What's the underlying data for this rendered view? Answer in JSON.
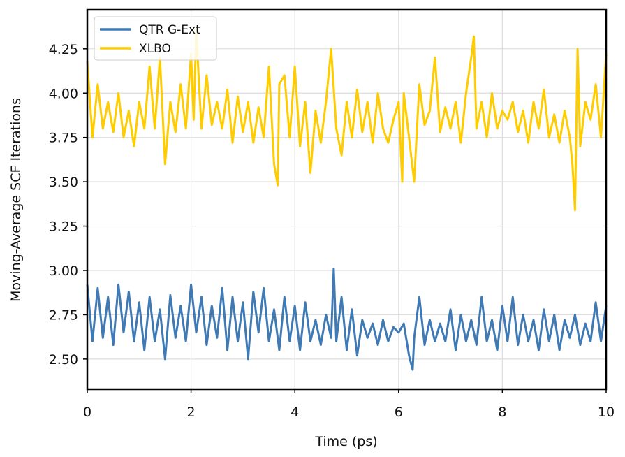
{
  "chart_data": {
    "type": "line",
    "title": "",
    "xlabel": "Time (ps)",
    "ylabel": "Moving-Average SCF Iterations",
    "xlim": [
      0,
      10
    ],
    "ylim": [
      2.33,
      4.47
    ],
    "xticks": [
      0,
      2,
      4,
      6,
      8,
      10
    ],
    "xtick_labels": [
      "0",
      "2",
      "4",
      "6",
      "8",
      "10"
    ],
    "yticks": [
      2.5,
      2.75,
      3.0,
      3.25,
      3.5,
      3.75,
      4.0,
      4.25
    ],
    "ytick_labels": [
      "2.50",
      "2.75",
      "3.00",
      "3.25",
      "3.50",
      "3.75",
      "4.00",
      "4.25"
    ],
    "grid": true,
    "legend_position": "top-left",
    "series": [
      {
        "name": "QTR G-Ext",
        "color": "#3f7ab5",
        "x": [
          0.0,
          0.1,
          0.2,
          0.3,
          0.4,
          0.5,
          0.6,
          0.7,
          0.8,
          0.9,
          1.0,
          1.1,
          1.2,
          1.3,
          1.4,
          1.5,
          1.6,
          1.7,
          1.8,
          1.9,
          2.0,
          2.1,
          2.2,
          2.3,
          2.4,
          2.5,
          2.6,
          2.7,
          2.8,
          2.9,
          3.0,
          3.1,
          3.2,
          3.3,
          3.4,
          3.5,
          3.6,
          3.7,
          3.8,
          3.9,
          4.0,
          4.1,
          4.2,
          4.3,
          4.4,
          4.5,
          4.6,
          4.7,
          4.75,
          4.8,
          4.9,
          5.0,
          5.1,
          5.2,
          5.3,
          5.4,
          5.5,
          5.6,
          5.7,
          5.8,
          5.9,
          6.0,
          6.1,
          6.2,
          6.27,
          6.3,
          6.4,
          6.5,
          6.6,
          6.7,
          6.8,
          6.9,
          7.0,
          7.1,
          7.2,
          7.3,
          7.4,
          7.5,
          7.6,
          7.7,
          7.8,
          7.9,
          8.0,
          8.1,
          8.2,
          8.3,
          8.4,
          8.5,
          8.6,
          8.7,
          8.8,
          8.9,
          9.0,
          9.1,
          9.2,
          9.3,
          9.4,
          9.5,
          9.6,
          9.7,
          9.8,
          9.9,
          10.0
        ],
        "y": [
          2.92,
          2.6,
          2.9,
          2.62,
          2.85,
          2.58,
          2.92,
          2.65,
          2.88,
          2.6,
          2.82,
          2.55,
          2.85,
          2.6,
          2.78,
          2.5,
          2.86,
          2.62,
          2.8,
          2.6,
          2.92,
          2.65,
          2.85,
          2.58,
          2.8,
          2.62,
          2.9,
          2.55,
          2.85,
          2.6,
          2.82,
          2.5,
          2.88,
          2.65,
          2.9,
          2.6,
          2.78,
          2.55,
          2.85,
          2.6,
          2.8,
          2.55,
          2.82,
          2.6,
          2.72,
          2.58,
          2.75,
          2.62,
          3.01,
          2.6,
          2.85,
          2.55,
          2.78,
          2.52,
          2.72,
          2.62,
          2.7,
          2.58,
          2.72,
          2.6,
          2.68,
          2.65,
          2.7,
          2.52,
          2.44,
          2.62,
          2.85,
          2.58,
          2.72,
          2.6,
          2.7,
          2.6,
          2.78,
          2.55,
          2.75,
          2.6,
          2.72,
          2.58,
          2.85,
          2.6,
          2.72,
          2.55,
          2.8,
          2.6,
          2.85,
          2.58,
          2.75,
          2.6,
          2.72,
          2.55,
          2.78,
          2.6,
          2.75,
          2.55,
          2.72,
          2.62,
          2.75,
          2.58,
          2.7,
          2.6,
          2.82,
          2.6,
          2.8
        ]
      },
      {
        "name": "XLBO",
        "color": "#ffcc00",
        "x": [
          0.0,
          0.1,
          0.2,
          0.3,
          0.4,
          0.5,
          0.6,
          0.7,
          0.8,
          0.9,
          1.0,
          1.1,
          1.2,
          1.3,
          1.4,
          1.5,
          1.6,
          1.7,
          1.8,
          1.9,
          2.0,
          2.05,
          2.1,
          2.2,
          2.3,
          2.4,
          2.5,
          2.6,
          2.7,
          2.8,
          2.9,
          3.0,
          3.1,
          3.2,
          3.3,
          3.4,
          3.5,
          3.6,
          3.67,
          3.7,
          3.8,
          3.9,
          4.0,
          4.1,
          4.2,
          4.3,
          4.4,
          4.5,
          4.6,
          4.7,
          4.8,
          4.9,
          5.0,
          5.1,
          5.2,
          5.3,
          5.4,
          5.5,
          5.6,
          5.7,
          5.8,
          5.9,
          6.0,
          6.07,
          6.1,
          6.2,
          6.3,
          6.4,
          6.5,
          6.6,
          6.7,
          6.8,
          6.9,
          7.0,
          7.1,
          7.2,
          7.3,
          7.4,
          7.45,
          7.5,
          7.6,
          7.7,
          7.8,
          7.9,
          8.0,
          8.1,
          8.2,
          8.3,
          8.4,
          8.5,
          8.6,
          8.7,
          8.8,
          8.9,
          9.0,
          9.1,
          9.2,
          9.3,
          9.35,
          9.4,
          9.45,
          9.5,
          9.6,
          9.7,
          9.8,
          9.9,
          10.0
        ],
        "y": [
          4.18,
          3.75,
          4.05,
          3.8,
          3.95,
          3.78,
          4.0,
          3.75,
          3.9,
          3.7,
          3.95,
          3.8,
          4.15,
          3.8,
          4.2,
          3.6,
          3.95,
          3.78,
          4.05,
          3.8,
          4.22,
          3.85,
          4.35,
          3.8,
          4.1,
          3.82,
          3.95,
          3.8,
          4.02,
          3.72,
          3.98,
          3.78,
          3.95,
          3.72,
          3.92,
          3.75,
          4.15,
          3.6,
          3.48,
          4.05,
          4.1,
          3.75,
          4.15,
          3.7,
          3.95,
          3.55,
          3.9,
          3.72,
          3.95,
          4.25,
          3.8,
          3.65,
          3.95,
          3.75,
          4.02,
          3.78,
          3.95,
          3.72,
          4.0,
          3.8,
          3.72,
          3.85,
          3.95,
          3.5,
          4.0,
          3.75,
          3.5,
          4.05,
          3.82,
          3.9,
          4.2,
          3.78,
          3.92,
          3.8,
          3.95,
          3.72,
          4.0,
          4.2,
          4.32,
          3.8,
          3.95,
          3.75,
          4.0,
          3.8,
          3.9,
          3.85,
          3.95,
          3.78,
          3.9,
          3.72,
          3.95,
          3.8,
          4.02,
          3.75,
          3.88,
          3.72,
          3.9,
          3.75,
          3.6,
          3.34,
          4.25,
          3.7,
          3.95,
          3.85,
          4.05,
          3.75,
          4.22
        ]
      }
    ]
  }
}
